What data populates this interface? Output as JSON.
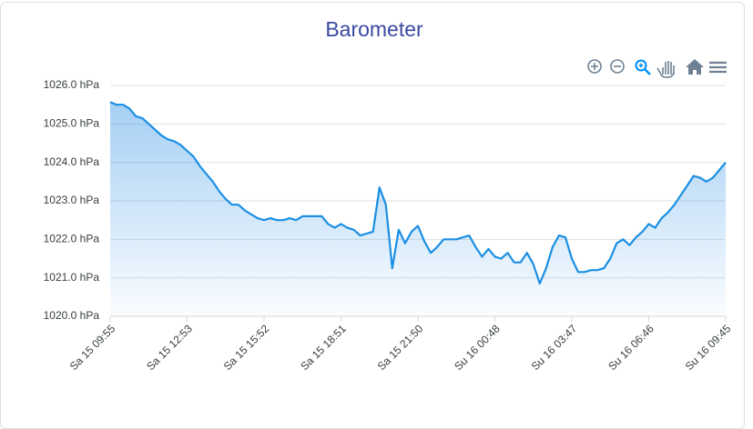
{
  "chart_data": {
    "type": "area",
    "title": "Barometer",
    "color": "#1a8fe3",
    "grid": true,
    "categories": [
      "Sa 15 09:55",
      null,
      null,
      null,
      null,
      null,
      null,
      null,
      null,
      null,
      null,
      null,
      "Sa 15 12:53",
      null,
      null,
      null,
      null,
      null,
      null,
      null,
      null,
      null,
      null,
      null,
      "Sa 15 15:52",
      null,
      null,
      null,
      null,
      null,
      null,
      null,
      null,
      null,
      null,
      null,
      "Sa 15 18:51",
      null,
      null,
      null,
      null,
      null,
      null,
      null,
      null,
      null,
      null,
      null,
      "Sa 15 21:50",
      null,
      null,
      null,
      null,
      null,
      null,
      null,
      null,
      null,
      null,
      null,
      "Su 16 00:48",
      null,
      null,
      null,
      null,
      null,
      null,
      null,
      null,
      null,
      null,
      null,
      "Su 16 03:47",
      null,
      null,
      null,
      null,
      null,
      null,
      null,
      null,
      null,
      null,
      null,
      "Su 16 06:46",
      null,
      null,
      null,
      null,
      null,
      null,
      null,
      null,
      null,
      null,
      null,
      "Su 16 09:45"
    ],
    "values": [
      1025.57,
      1025.5,
      1025.5,
      1025.4,
      1025.2,
      1025.15,
      1025.0,
      1024.85,
      1024.7,
      1024.6,
      1024.55,
      1024.45,
      1024.3,
      1024.15,
      1023.9,
      1023.7,
      1023.5,
      1023.25,
      1023.05,
      1022.9,
      1022.9,
      1022.75,
      1022.65,
      1022.55,
      1022.5,
      1022.55,
      1022.5,
      1022.5,
      1022.55,
      1022.5,
      1022.6,
      1022.6,
      1022.6,
      1022.6,
      1022.4,
      1022.3,
      1022.4,
      1022.3,
      1022.25,
      1022.1,
      1022.15,
      1022.2,
      1023.35,
      1022.9,
      1021.25,
      1022.25,
      1021.9,
      1022.2,
      1022.35,
      1021.95,
      1021.65,
      1021.8,
      1022.0,
      1022.0,
      1022.0,
      1022.05,
      1022.1,
      1021.8,
      1021.55,
      1021.75,
      1021.55,
      1021.5,
      1021.65,
      1021.4,
      1021.4,
      1021.65,
      1021.35,
      1020.85,
      1021.25,
      1021.8,
      1022.1,
      1022.05,
      1021.5,
      1021.15,
      1021.15,
      1021.2,
      1021.2,
      1021.25,
      1021.5,
      1021.9,
      1022.0,
      1021.85,
      1022.05,
      1022.2,
      1022.4,
      1022.3,
      1022.55,
      1022.7,
      1022.9,
      1023.15,
      1023.4,
      1023.65,
      1023.6,
      1023.5,
      1023.6,
      1023.8,
      1024.0
    ],
    "ylim": [
      1020,
      1026
    ],
    "yticks": [
      {
        "value": 1020,
        "label": "1020.0 hPa"
      },
      {
        "value": 1021,
        "label": "1021.0 hPa"
      },
      {
        "value": 1022,
        "label": "1022.0 hPa"
      },
      {
        "value": 1023,
        "label": "1023.0 hPa"
      },
      {
        "value": 1024,
        "label": "1024.0 hPa"
      },
      {
        "value": 1025,
        "label": "1025.0 hPa"
      },
      {
        "value": 1026,
        "label": "1026.0 hPa"
      }
    ]
  }
}
